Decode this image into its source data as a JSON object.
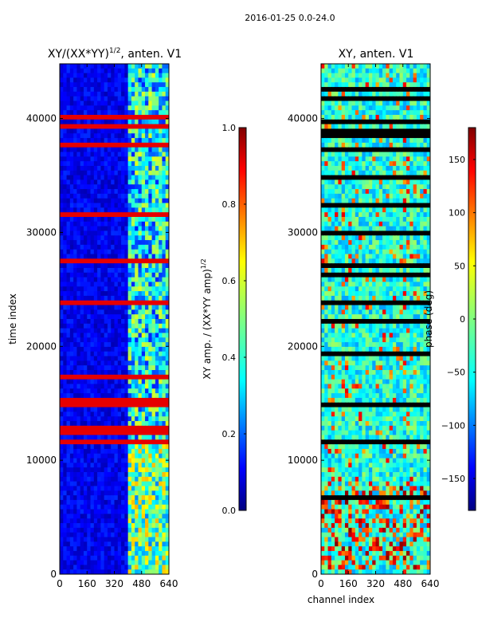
{
  "figure": {
    "suptitle": "2016-01-25 0.0-24.0"
  },
  "chart_data": [
    {
      "type": "heatmap",
      "title": "XY/(XX*YY)^{1/2}, anten. V1",
      "title_main": "XY/(XX*YY)",
      "title_exp": "1/2",
      "title_tail": ", anten. V1",
      "xlabel": "",
      "ylabel": "time index",
      "xlim": [
        0,
        640
      ],
      "ylim": [
        0,
        44800
      ],
      "xticks": [
        0,
        160,
        320,
        480,
        640
      ],
      "yticks": [
        0,
        10000,
        20000,
        30000,
        40000
      ],
      "colormap": "jet",
      "colorbar": {
        "label": "XY amp. / (XX*YY amp)^{1/2}",
        "label_main": "XY amp. / (XX*YY amp)",
        "label_exp": "1/2",
        "vmin": 0.0,
        "vmax": 1.0,
        "ticks": [
          "0.0",
          "0.2",
          "0.4",
          "0.6",
          "0.8",
          "1.0"
        ],
        "tick_values": [
          0.0,
          0.2,
          0.4,
          0.6,
          0.8,
          1.0
        ]
      },
      "description_of_values": "mostly low (~0.1) for channels 0-400, higher (0.2-0.6) for channels ~400-640; horizontal red flag lines across all channels"
    },
    {
      "type": "heatmap",
      "title": "XY, anten. V1",
      "xlabel": "channel index",
      "ylabel": "",
      "xlim": [
        0,
        640
      ],
      "ylim": [
        0,
        44800
      ],
      "xticks": [
        0,
        160,
        320,
        480,
        640
      ],
      "yticks": [
        0,
        10000,
        20000,
        30000,
        40000
      ],
      "colormap": "jet",
      "colorbar": {
        "label": "phase (deg)",
        "vmin": -180,
        "vmax": 180,
        "ticks": [
          "150",
          "100",
          "50",
          "0",
          "−50",
          "−100",
          "−150"
        ],
        "tick_values": [
          150,
          100,
          50,
          0,
          -50,
          -100,
          -150
        ]
      },
      "description_of_values": "phase mostly 0 to -100 deg, with red/yellow (+100 to +180) patches near channels 0-500 below time index ~9000; black flag lines"
    }
  ],
  "colors": {
    "jet": [
      "#000080",
      "#0000ff",
      "#0080ff",
      "#00ffff",
      "#80ff80",
      "#ffff00",
      "#ff8000",
      "#ff0000",
      "#800000"
    ]
  }
}
